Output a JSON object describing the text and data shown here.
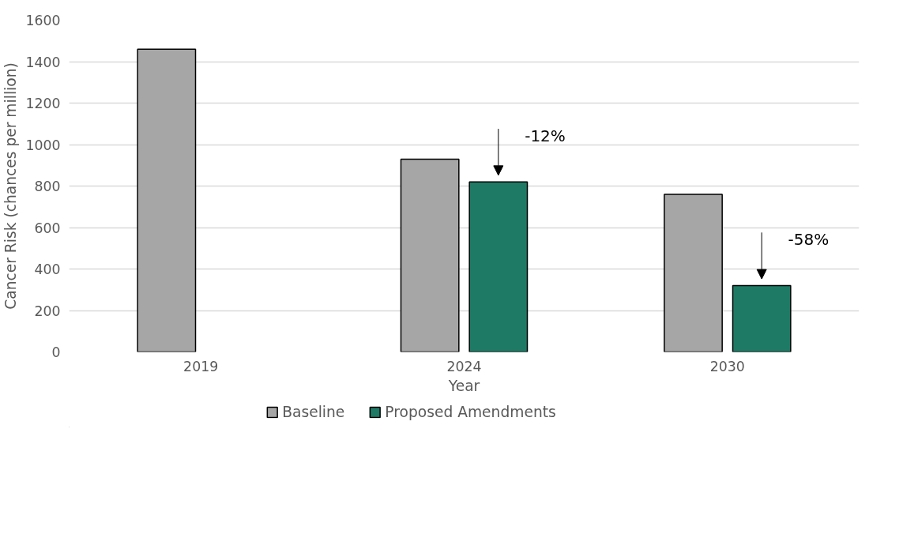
{
  "chart_data": {
    "type": "bar",
    "xlabel": "Year",
    "ylabel": "Cancer Risk (chances per million)",
    "categories": [
      "2019",
      "2024",
      "2030"
    ],
    "series": [
      {
        "name": "Baseline",
        "color": "#a6a6a6",
        "values": [
          1460,
          930,
          760
        ]
      },
      {
        "name": "Proposed Amendments",
        "color": "#1e7a64",
        "values": [
          null,
          820,
          320
        ]
      }
    ],
    "ylim": [
      0,
      1600
    ],
    "yticks": [
      0,
      200,
      400,
      600,
      800,
      1000,
      1200,
      1400,
      1600
    ],
    "grid": "y",
    "legend": "bottom",
    "annotations": [
      "-12%",
      "-58%"
    ]
  }
}
